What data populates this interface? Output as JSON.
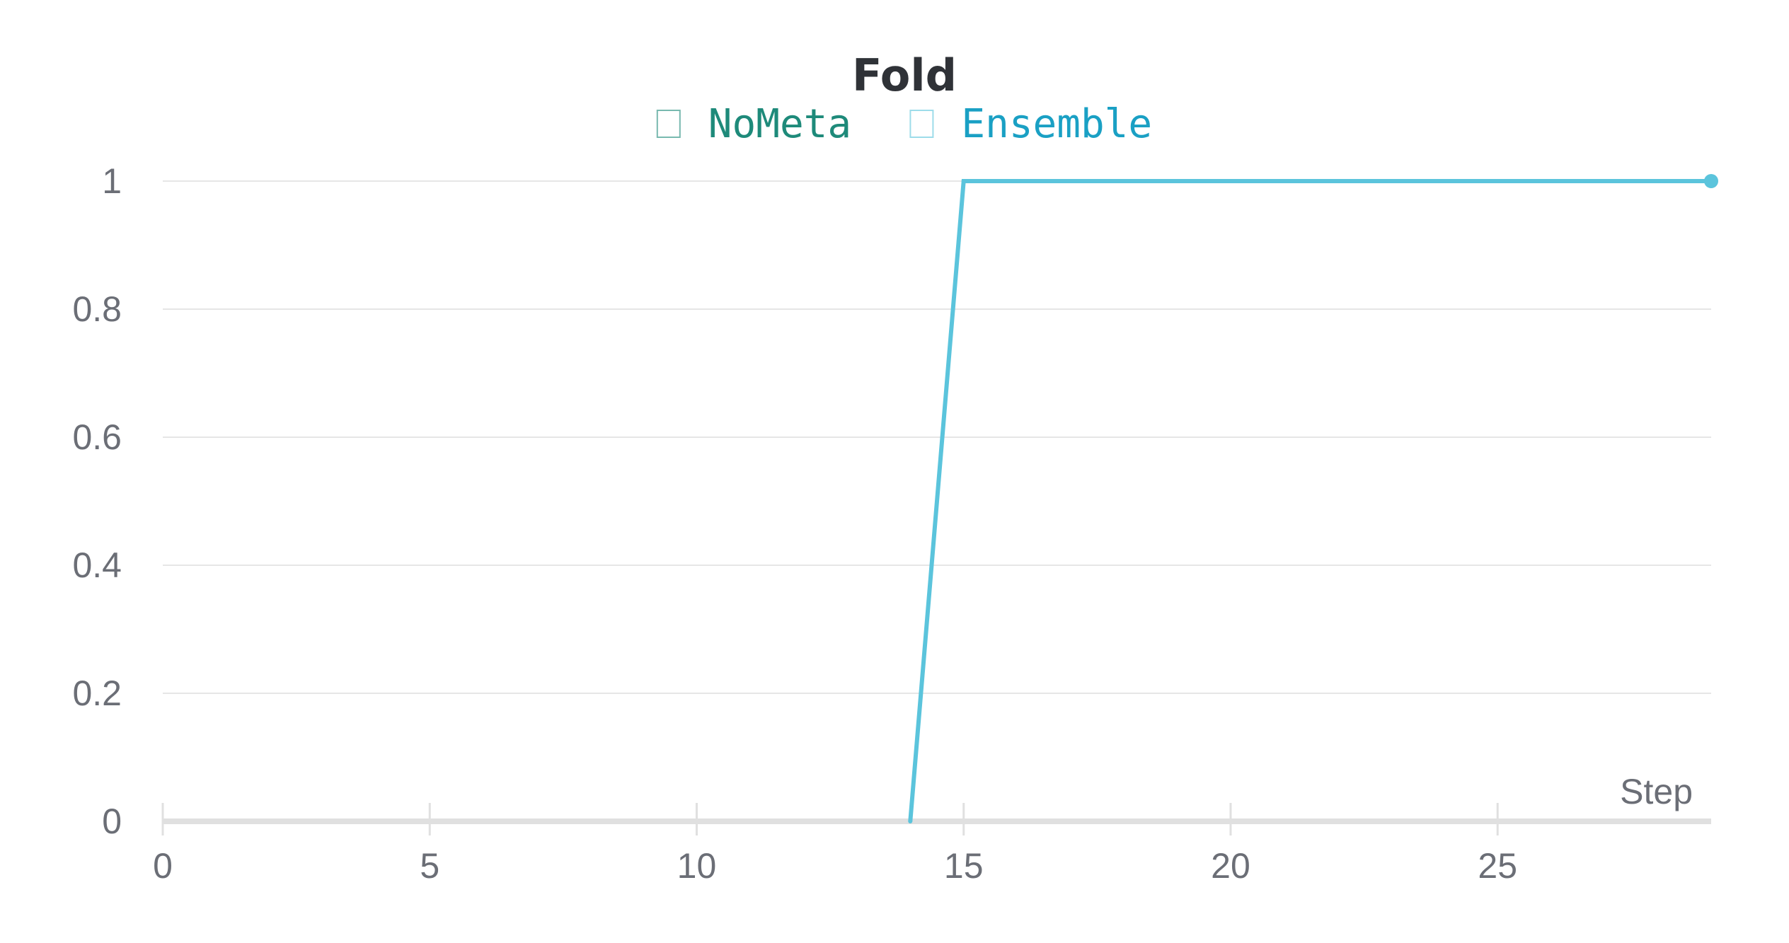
{
  "colors": {
    "NoMeta": "#1e8a7a",
    "Ensemble": "#5bc4dc",
    "EnsembleLegend": "#1aa0c4",
    "grid": "#e6e6e6",
    "axis": "#e0e0e0",
    "text": "#6b6e76",
    "title": "#2f3237"
  },
  "chart_data": {
    "type": "line",
    "title": "Fold",
    "xlabel": "Step",
    "ylabel": "",
    "xlim": [
      0,
      29
    ],
    "ylim": [
      0,
      1
    ],
    "x_ticks": [
      0,
      5,
      10,
      15,
      20,
      25
    ],
    "x_tick_labels": [
      "0",
      "5",
      "10",
      "15",
      "20",
      "25"
    ],
    "y_ticks": [
      0,
      0.2,
      0.4,
      0.6,
      0.8,
      1
    ],
    "y_tick_labels": [
      "0",
      "0.2",
      "0.4",
      "0.6",
      "0.8",
      "1"
    ],
    "grid": true,
    "legend_position": "top-center",
    "series": [
      {
        "name": "NoMeta",
        "color": "#1e8a7a",
        "x": [],
        "y": []
      },
      {
        "name": "Ensemble",
        "color": "#5bc4dc",
        "x": [
          14,
          15,
          29
        ],
        "y": [
          0,
          1,
          1
        ],
        "end_marker": true
      }
    ]
  }
}
